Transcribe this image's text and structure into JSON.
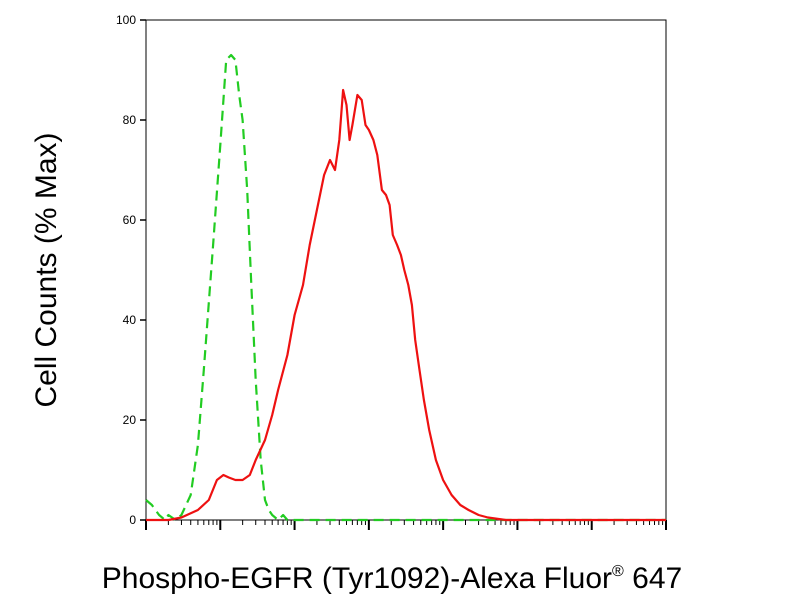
{
  "chart_data": {
    "type": "line",
    "title": "",
    "xlabel": "Phospho-EGFR (Tyr1092)-Alexa Fluor",
    "xlabel_superscript": "®",
    "xlabel_suffix": " 647",
    "ylabel": "Cell Counts (% Max)",
    "x_scale": "log",
    "xlim": [
      0.1,
      1000000
    ],
    "ylim": [
      0,
      100
    ],
    "y_ticks": [
      "0",
      "20",
      "40",
      "60",
      "80",
      "100"
    ],
    "grid": false,
    "legend": "none",
    "series": [
      {
        "style": "dashed",
        "color": "#22cc22",
        "x": [
          0.1,
          0.12,
          0.15,
          0.18,
          0.2,
          0.25,
          0.3,
          0.4,
          0.5,
          0.6,
          0.8,
          1,
          1.2,
          1.4,
          1.6,
          1.8,
          2,
          2.3,
          2.6,
          3,
          3.5,
          4,
          4.5,
          5,
          6,
          7,
          8,
          10,
          12,
          20,
          100,
          10000,
          1000000
        ],
        "y": [
          4,
          3,
          1,
          0,
          1,
          0,
          1,
          5,
          15,
          30,
          55,
          75,
          92,
          93,
          92,
          85,
          80,
          66,
          48,
          28,
          12,
          4,
          2,
          1,
          0,
          1,
          0,
          0,
          0,
          0,
          0,
          0,
          0
        ]
      },
      {
        "style": "solid",
        "color": "#ee1111",
        "x": [
          0.1,
          0.2,
          0.3,
          0.5,
          0.7,
          0.9,
          1.1,
          1.3,
          1.6,
          2,
          2.5,
          3,
          4,
          5,
          6,
          8,
          10,
          13,
          16,
          20,
          25,
          30,
          35,
          40,
          45,
          50,
          55,
          60,
          70,
          80,
          90,
          100,
          115,
          130,
          150,
          170,
          190,
          210,
          240,
          270,
          300,
          340,
          380,
          420,
          480,
          550,
          650,
          800,
          1000,
          1300,
          1700,
          2200,
          3000,
          4000,
          5000,
          7000,
          10000,
          15000,
          20000,
          30000,
          50000,
          100000,
          300000,
          1000000
        ],
        "y": [
          0,
          0,
          0.5,
          2,
          4,
          8,
          9,
          8.5,
          8,
          8,
          9,
          12,
          16,
          21,
          26,
          33,
          41,
          47,
          55,
          62,
          69,
          72,
          70,
          76,
          86,
          83,
          76,
          79,
          85,
          84,
          79,
          78,
          76,
          73,
          66,
          65,
          63,
          57,
          55,
          53,
          50,
          47,
          43,
          36,
          30,
          24,
          18,
          12,
          8,
          5,
          3,
          2,
          1,
          0.5,
          0.3,
          0,
          0,
          0,
          0,
          0,
          0,
          0,
          0,
          0
        ]
      }
    ]
  }
}
